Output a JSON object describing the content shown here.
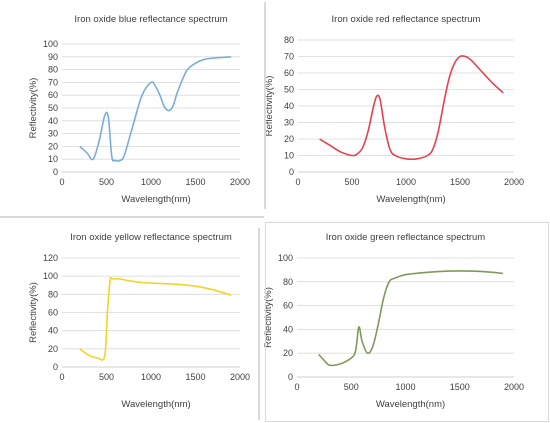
{
  "chart_data": [
    {
      "type": "line",
      "title": "Iron oxide blue reflectance spectrum",
      "xlabel": "Wavelength(nm)",
      "ylabel": "Reflectivity(%)",
      "xlim": [
        0,
        2000
      ],
      "ylim": [
        0,
        100
      ],
      "xticks": [
        "0",
        "500",
        "1000",
        "1500",
        "2000"
      ],
      "yticks": [
        "0",
        "10",
        "20",
        "30",
        "40",
        "50",
        "60",
        "70",
        "80",
        "90",
        "100"
      ],
      "grid": true,
      "color": "#7aaed6",
      "series": [
        {
          "x": [
            200,
            280,
            350,
            420,
            480,
            520,
            560,
            600,
            650,
            700,
            800,
            900,
            1000,
            1050,
            1100,
            1150,
            1200,
            1250,
            1300,
            1400,
            1500,
            1600,
            1700,
            1900
          ],
          "values": [
            20,
            15,
            10,
            25,
            44,
            43,
            12,
            9,
            9,
            13,
            37,
            60,
            70,
            67,
            60,
            51,
            48,
            52,
            63,
            79,
            85,
            88,
            89,
            90
          ]
        }
      ]
    },
    {
      "type": "line",
      "title": "Iron oxide red reflectance spectrum",
      "xlabel": "Wavelength(nm)",
      "ylabel": "Reflectivity(%)",
      "xlim": [
        0,
        2000
      ],
      "ylim": [
        0,
        80
      ],
      "xticks": [
        "0",
        "500",
        "1000",
        "1500",
        "2000"
      ],
      "yticks": [
        "0",
        "10",
        "20",
        "30",
        "40",
        "50",
        "60",
        "70",
        "80"
      ],
      "grid": true,
      "color": "#e5414e",
      "series": [
        {
          "x": [
            200,
            300,
            400,
            500,
            550,
            600,
            650,
            700,
            730,
            760,
            800,
            850,
            900,
            1000,
            1100,
            1200,
            1250,
            1300,
            1350,
            1400,
            1450,
            1500,
            1550,
            1600,
            1700,
            1800,
            1900
          ],
          "values": [
            20,
            16,
            12,
            10,
            11,
            15,
            25,
            40,
            46,
            44,
            28,
            14,
            10,
            8,
            8,
            10,
            14,
            25,
            42,
            57,
            66,
            70,
            70,
            68,
            61,
            54,
            48
          ]
        }
      ]
    },
    {
      "type": "line",
      "title": "Iron oxide yellow reflectance spectrum",
      "xlabel": "Wavelength(nm)",
      "ylabel": "Reflectivity(%)",
      "xlim": [
        0,
        2000
      ],
      "ylim": [
        0,
        120
      ],
      "xticks": [
        "0",
        "500",
        "1000",
        "1500",
        "2000"
      ],
      "yticks": [
        "0",
        "20",
        "40",
        "60",
        "80",
        "100",
        "120"
      ],
      "grid": true,
      "color": "#f5d328",
      "series": [
        {
          "x": [
            200,
            300,
            400,
            480,
            510,
            540,
            570,
            650,
            750,
            900,
            1100,
            1300,
            1500,
            1700,
            1900
          ],
          "values": [
            20,
            13,
            10,
            12,
            60,
            95,
            97,
            97,
            95,
            93,
            92,
            91,
            89,
            85,
            79
          ]
        }
      ]
    },
    {
      "type": "line",
      "title": "Iron oxide green reflectance spectrum",
      "xlabel": "Wavelength(nm)",
      "ylabel": "Reflectivity(%)",
      "xlim": [
        0,
        2000
      ],
      "ylim": [
        0,
        100
      ],
      "xticks": [
        "0",
        "500",
        "1000",
        "1500",
        "2000"
      ],
      "yticks": [
        "0",
        "20",
        "40",
        "60",
        "80",
        "100"
      ],
      "grid": true,
      "color": "#7f9a5c",
      "series": [
        {
          "x": [
            200,
            250,
            300,
            400,
            500,
            540,
            570,
            600,
            650,
            700,
            750,
            800,
            850,
            900,
            1000,
            1200,
            1400,
            1600,
            1800,
            1900
          ],
          "values": [
            19,
            14,
            10,
            11,
            16,
            22,
            42,
            30,
            20,
            26,
            45,
            67,
            80,
            83,
            86,
            88,
            89,
            89,
            88,
            87
          ]
        }
      ]
    }
  ]
}
